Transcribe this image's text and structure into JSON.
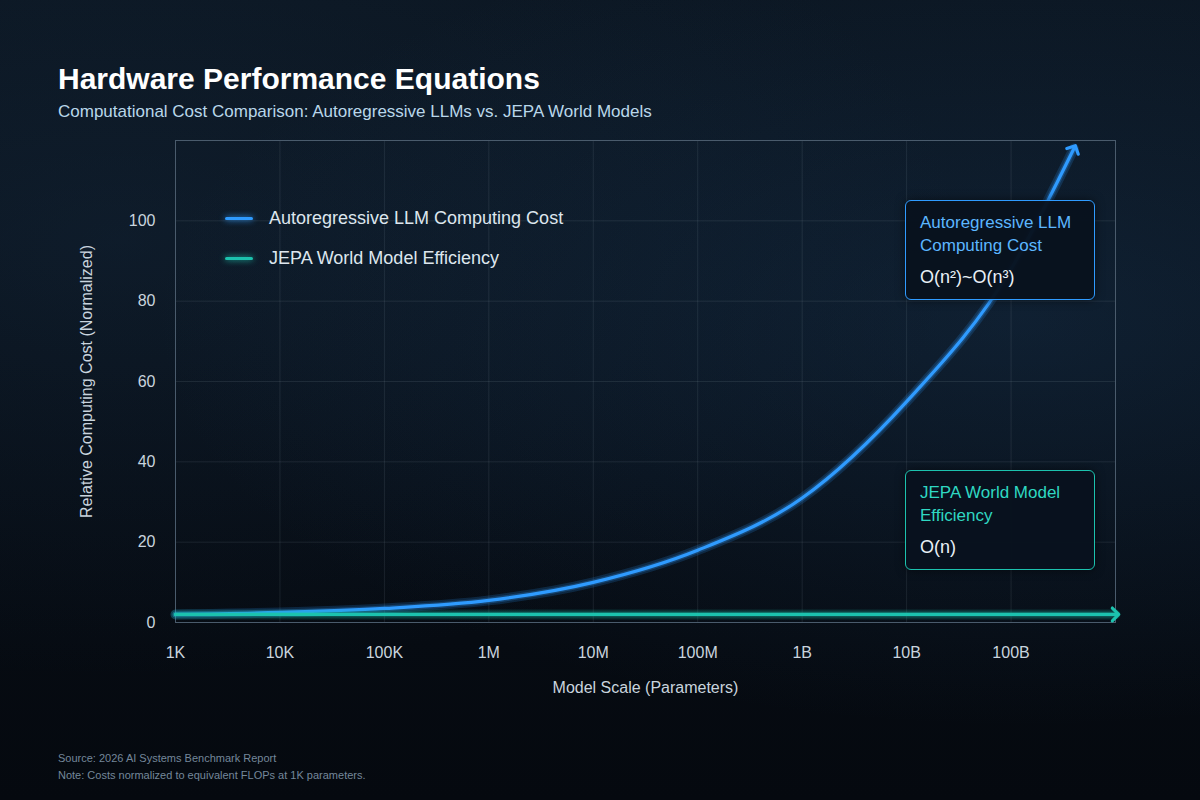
{
  "chart_data": {
    "type": "line",
    "title": "Hardware Performance Equations",
    "subtitle": "Computational Cost Comparison: Autoregressive LLMs vs. JEPA World Models",
    "x_label": "Model Scale (Parameters)",
    "y_label": "Relative Computing Cost (Normalized)",
    "x": [
      1000,
      10000,
      100000,
      1000000,
      10000000,
      100000000,
      1000000000,
      10000000000,
      100000000000,
      400000000000,
      1000000000000
    ],
    "series": [
      {
        "name": "Autoregressive LLM Computing Cost",
        "color": "#2f9bff",
        "marker": "arrow",
        "annotation": "O(n²)~O(n³)",
        "values": [
          2,
          2.5,
          3.5,
          5.5,
          10,
          18,
          31,
          55,
          88,
          118,
          null
        ]
      },
      {
        "name": "JEPA World Model Efficiency",
        "color": "#1cc2ae",
        "marker": "arrow",
        "annotation": "O(n)",
        "values": [
          2,
          2,
          2,
          2,
          2,
          2,
          2,
          2,
          2,
          2,
          2
        ]
      }
    ],
    "xlim": [
      1000,
      1000000000000
    ],
    "ylim": [
      0,
      120
    ],
    "xticks": [
      {
        "value": 1000,
        "label": "1K"
      },
      {
        "value": 10000,
        "label": "10K"
      },
      {
        "value": 100000,
        "label": "100K"
      },
      {
        "value": 1000000,
        "label": "1M"
      },
      {
        "value": 10000000,
        "label": "10M"
      },
      {
        "value": 100000000,
        "label": "100M"
      },
      {
        "value": 1000000000,
        "label": "1B"
      },
      {
        "value": 10000000000,
        "label": "10B"
      },
      {
        "value": 100000000000,
        "label": "100B"
      }
    ],
    "yticks": [
      0,
      20,
      40,
      60,
      80,
      100
    ],
    "log": "x",
    "grid": true,
    "legend": "top-left",
    "footnotes": [
      "Source: 2026 AI Systems Benchmark Report",
      "Note: Costs normalized to equivalent FLOPs at 1K parameters."
    ]
  }
}
